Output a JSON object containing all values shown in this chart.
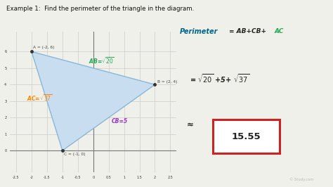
{
  "title": "Example 1:  Find the perimeter of the triangle in the diagram.",
  "bg_color": "#f0f0eb",
  "grid_color": "#cccccc",
  "triangle_fill": "#c8ddf0",
  "triangle_edge": "#88b8d8",
  "points_A": [
    -2,
    6
  ],
  "points_B": [
    2,
    4
  ],
  "points_C": [
    -1,
    0
  ],
  "label_A": "A = (-2, 6)",
  "label_B": "B = (2, 4)",
  "label_C": "C = (-1, 0)",
  "xlim": [
    -2.7,
    2.7
  ],
  "ylim": [
    -1.3,
    7.2
  ],
  "xticks": [
    -2.5,
    -2.0,
    -1.5,
    -1.0,
    -0.5,
    0.0,
    0.5,
    1.0,
    1.5,
    2.0,
    2.5
  ],
  "yticks": [
    0,
    1,
    2,
    3,
    4,
    5,
    6
  ],
  "color_green": "#22aa55",
  "color_purple": "#9933cc",
  "color_orange": "#ff8800",
  "color_teal": "#006688",
  "color_dark": "#222222",
  "color_red_box": "#cc2222",
  "watermark": "© Study.com"
}
